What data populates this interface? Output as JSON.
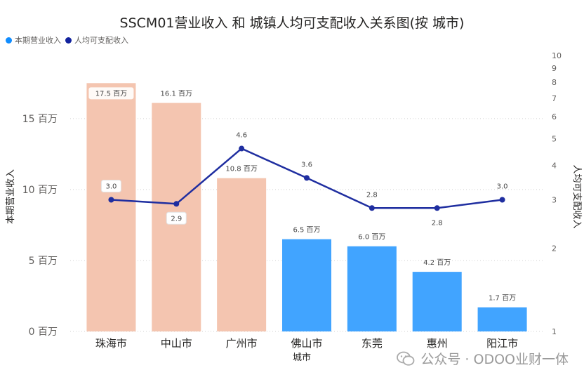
{
  "title": "SSCM01营业收入 和 城镇人均可支配收入关系图(按 城市)",
  "legend": [
    {
      "label": "本期营业收入",
      "color": "#118DFF"
    },
    {
      "label": "人均可支配收入",
      "color": "#12239E"
    }
  ],
  "watermark": "公众号 · ODOO业财一体",
  "colors": {
    "bar_highlight": "#F4C5B0",
    "bar_normal": "#41A4FF",
    "line": "#1F2EA0",
    "axis_text": "#605e5c"
  },
  "chart_data": {
    "type": "bar+line",
    "categories": [
      "珠海市",
      "中山市",
      "广州市",
      "佛山市",
      "东莞",
      "惠州",
      "阳江市"
    ],
    "xlabel": "城市",
    "ylabel": "本期营业收入",
    "y2label": "人均可支配收入",
    "ylim": [
      0,
      19
    ],
    "y_ticks": [
      0,
      5,
      10,
      15
    ],
    "y_tick_labels": [
      "0 百万",
      "5 百万",
      "10 百万",
      "15 百万"
    ],
    "y2_scale": "log",
    "y2lim": [
      1,
      10
    ],
    "y2_ticks": [
      1,
      2,
      3,
      4,
      5,
      6,
      7,
      8,
      9,
      10
    ],
    "grid": true,
    "series": [
      {
        "name": "本期营业收入",
        "kind": "bar",
        "values": [
          17.5,
          16.1,
          10.8,
          6.5,
          6.0,
          4.2,
          1.7
        ],
        "labels": [
          "17.5 百万",
          "16.1 百万",
          "10.8 百万",
          "6.5 百万",
          "6.0 百万",
          "4.2 百万",
          "1.7 百万"
        ],
        "highlight": [
          true,
          true,
          true,
          false,
          false,
          false,
          false
        ]
      },
      {
        "name": "人均可支配收入",
        "kind": "line",
        "axis": "right",
        "values": [
          3.0,
          2.9,
          4.6,
          3.6,
          2.8,
          2.8,
          3.0
        ],
        "labels": [
          "3.0",
          "2.9",
          "4.6",
          "3.6",
          "2.8",
          "2.8",
          "3.0"
        ]
      }
    ]
  }
}
